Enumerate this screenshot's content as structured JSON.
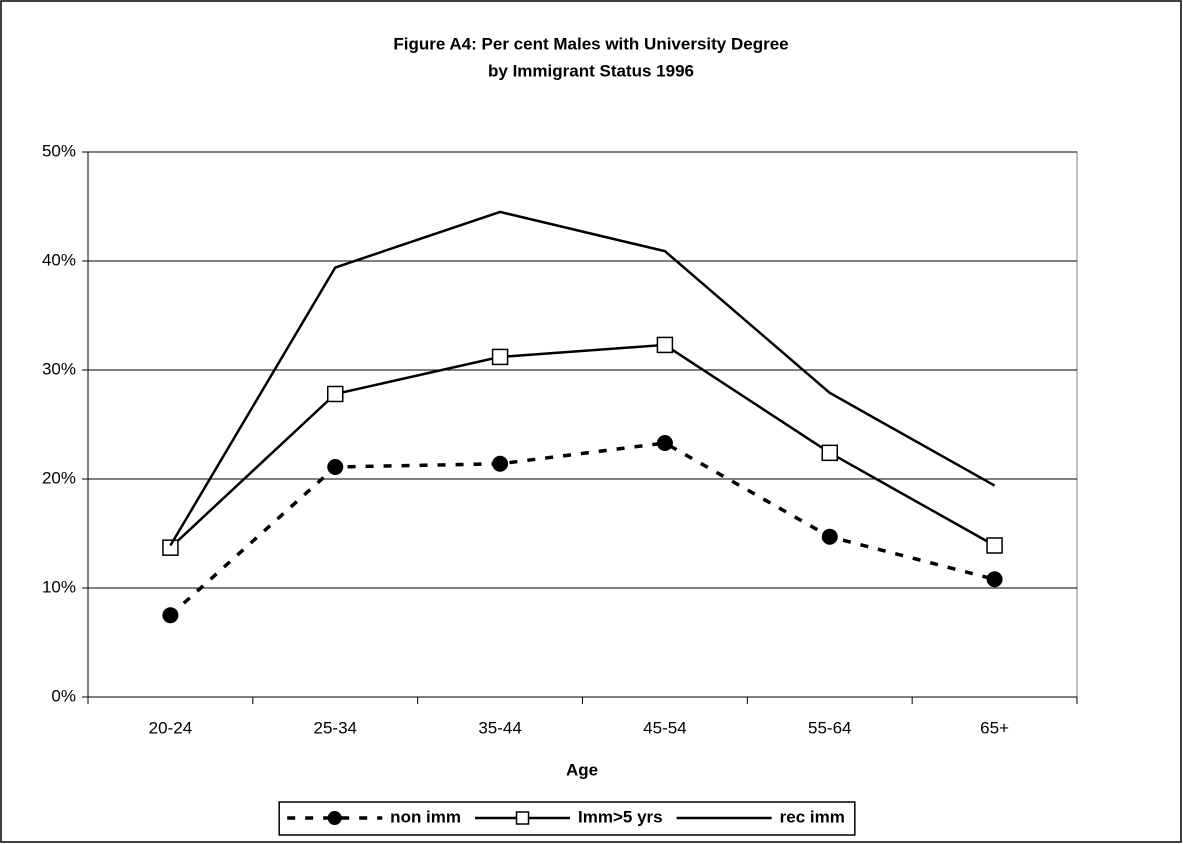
{
  "chart_data": {
    "type": "line",
    "title": "Figure A4:  Per cent Males with University Degree",
    "subtitle": "by Immigrant Status 1996",
    "x_label": "Age",
    "categories": [
      "20-24",
      "25-34",
      "35-44",
      "45-54",
      "55-64",
      "65+"
    ],
    "series": [
      {
        "name": "non imm",
        "color": "#000000",
        "marker": "circle",
        "dashed": true,
        "values": [
          7.5,
          21.1,
          21.4,
          23.3,
          14.7,
          10.8
        ]
      },
      {
        "name": "Imm>5 yrs",
        "color": "#000000",
        "marker": "square",
        "dashed": false,
        "values": [
          13.7,
          27.8,
          31.2,
          32.3,
          22.4,
          13.9
        ]
      },
      {
        "name": "rec imm",
        "color": "#000000",
        "marker": "none",
        "dashed": false,
        "values": [
          13.9,
          39.4,
          44.5,
          40.9,
          27.9,
          19.4
        ]
      }
    ],
    "ylim": [
      0,
      50
    ],
    "yticks": [
      {
        "value": 0,
        "label": "0%"
      },
      {
        "value": 10,
        "label": "10%"
      },
      {
        "value": 20,
        "label": "20%"
      },
      {
        "value": 30,
        "label": "30%"
      },
      {
        "value": 40,
        "label": "40%"
      },
      {
        "value": 50,
        "label": "50%"
      }
    ],
    "grid": true,
    "legend": "bottom"
  }
}
